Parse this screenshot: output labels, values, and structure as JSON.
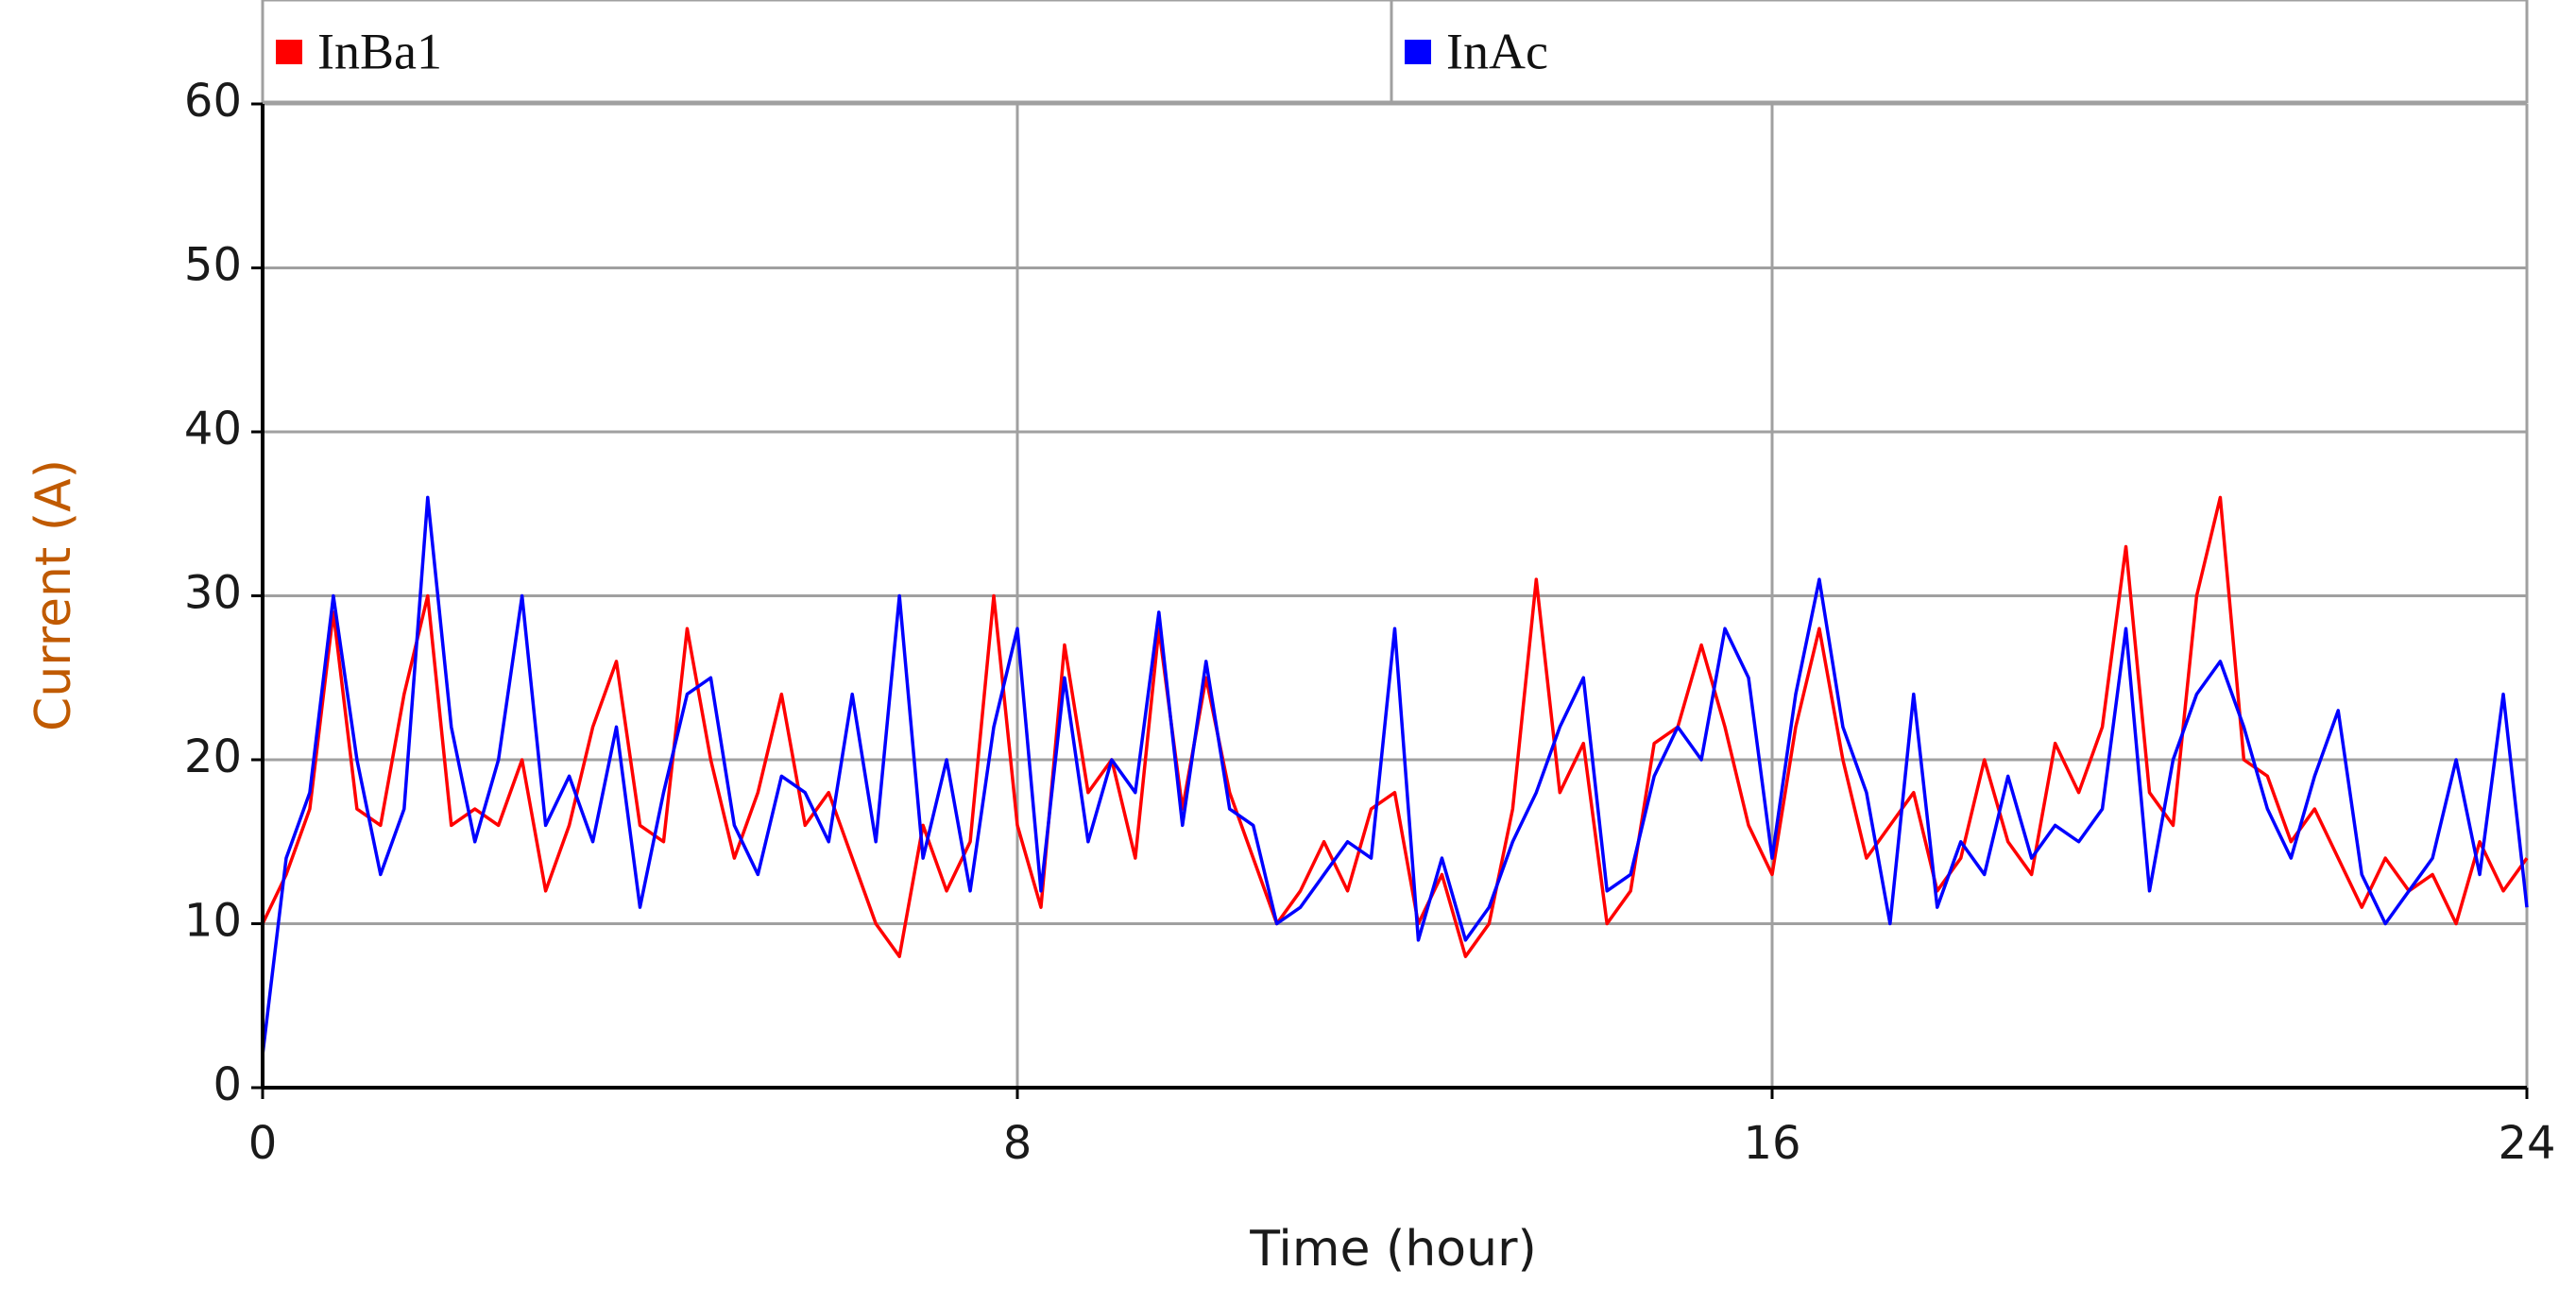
{
  "chart_data": {
    "type": "line",
    "xlabel": "Time (hour)",
    "ylabel": "Current (A)",
    "x": [
      0,
      0.25,
      0.5,
      0.75,
      1,
      1.25,
      1.5,
      1.75,
      2,
      2.25,
      2.5,
      2.75,
      3,
      3.25,
      3.5,
      3.75,
      4,
      4.25,
      4.5,
      4.75,
      5,
      5.25,
      5.5,
      5.75,
      6,
      6.25,
      6.5,
      6.75,
      7,
      7.25,
      7.5,
      7.75,
      8,
      8.25,
      8.5,
      8.75,
      9,
      9.25,
      9.5,
      9.75,
      10,
      10.25,
      10.5,
      10.75,
      11,
      11.25,
      11.5,
      11.75,
      12,
      12.25,
      12.5,
      12.75,
      13,
      13.25,
      13.5,
      13.75,
      14,
      14.25,
      14.5,
      14.75,
      15,
      15.25,
      15.5,
      15.75,
      16,
      16.25,
      16.5,
      16.75,
      17,
      17.25,
      17.5,
      17.75,
      18,
      18.25,
      18.5,
      18.75,
      19,
      19.25,
      19.5,
      19.75,
      20,
      20.25,
      20.5,
      20.75,
      21,
      21.25,
      21.5,
      21.75,
      22,
      22.25,
      22.5,
      22.75,
      23,
      23.25,
      23.5,
      23.75,
      24
    ],
    "series": [
      {
        "name": "InBa1",
        "color": "#ff0000",
        "values": [
          10,
          13,
          17,
          29,
          17,
          16,
          24,
          30,
          16,
          17,
          16,
          20,
          12,
          16,
          22,
          26,
          16,
          15,
          28,
          20,
          14,
          18,
          24,
          16,
          18,
          14,
          10,
          8,
          16,
          12,
          15,
          30,
          16,
          11,
          27,
          18,
          20,
          14,
          28,
          17,
          25,
          18,
          14,
          10,
          12,
          15,
          12,
          17,
          18,
          10,
          13,
          8,
          10,
          17,
          31,
          18,
          21,
          10,
          12,
          21,
          22,
          27,
          22,
          16,
          13,
          22,
          28,
          20,
          14,
          16,
          18,
          12,
          14,
          20,
          15,
          13,
          21,
          18,
          22,
          33,
          18,
          16,
          30,
          36,
          20,
          19,
          15,
          17,
          14,
          11,
          14,
          12,
          13,
          10,
          15,
          12,
          14
        ]
      },
      {
        "name": "InAc",
        "color": "#0000ff",
        "values": [
          2,
          14,
          18,
          30,
          20,
          13,
          17,
          36,
          22,
          15,
          20,
          30,
          16,
          19,
          15,
          22,
          11,
          18,
          24,
          25,
          16,
          13,
          19,
          18,
          15,
          24,
          15,
          30,
          14,
          20,
          12,
          22,
          28,
          12,
          25,
          15,
          20,
          18,
          29,
          16,
          26,
          17,
          16,
          10,
          11,
          13,
          15,
          14,
          28,
          9,
          14,
          9,
          11,
          15,
          18,
          22,
          25,
          12,
          13,
          19,
          22,
          20,
          28,
          25,
          14,
          24,
          31,
          22,
          18,
          10,
          24,
          11,
          15,
          13,
          19,
          14,
          16,
          15,
          17,
          28,
          12,
          20,
          24,
          26,
          22,
          17,
          14,
          19,
          23,
          13,
          10,
          12,
          14,
          20,
          13,
          24,
          11
        ]
      }
    ],
    "xlim": [
      0,
      24
    ],
    "xticks": [
      0,
      8,
      16,
      24
    ],
    "ylim": [
      0,
      60
    ],
    "yticks": [
      0,
      10,
      20,
      30,
      40,
      50,
      60
    ],
    "grid": true,
    "legend": "top"
  }
}
